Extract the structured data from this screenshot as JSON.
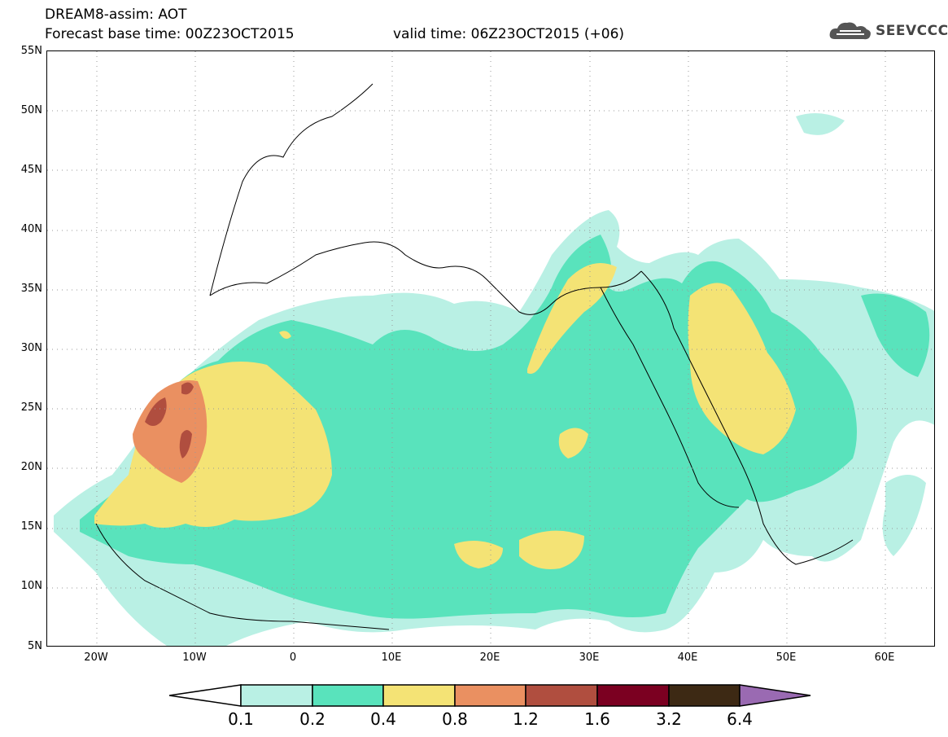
{
  "title": {
    "line1": "DREAM8-assim: AOT",
    "line2": "Forecast base time: 00Z23OCT2015",
    "valid": "valid time: 06Z23OCT2015 (+06)"
  },
  "logo": {
    "text": "SEEVCCC",
    "icon": "cloud-icon"
  },
  "map": {
    "lat_labels": [
      "55N",
      "50N",
      "45N",
      "40N",
      "35N",
      "30N",
      "25N",
      "20N",
      "15N",
      "10N",
      "5N"
    ],
    "lon_labels": [
      "20W",
      "10W",
      "0",
      "10E",
      "20E",
      "30E",
      "40E",
      "50E",
      "60E"
    ],
    "colors": {
      "c01": "#b9f0e4",
      "c02": "#59e3bc",
      "c04": "#f4e375",
      "c08": "#ea9061",
      "c12": "#b04e3f",
      "c16": "#7b0021",
      "c32": "#3d2914",
      "c64": "#9a6ab2"
    }
  },
  "colorbar": {
    "labels": [
      "0.1",
      "0.2",
      "0.4",
      "0.8",
      "1.2",
      "1.6",
      "3.2",
      "6.4"
    ],
    "colors": [
      "#ffffff",
      "#b9f0e4",
      "#59e3bc",
      "#f4e375",
      "#ea9061",
      "#b04e3f",
      "#7b0021",
      "#3d2914",
      "#9a6ab2"
    ]
  }
}
